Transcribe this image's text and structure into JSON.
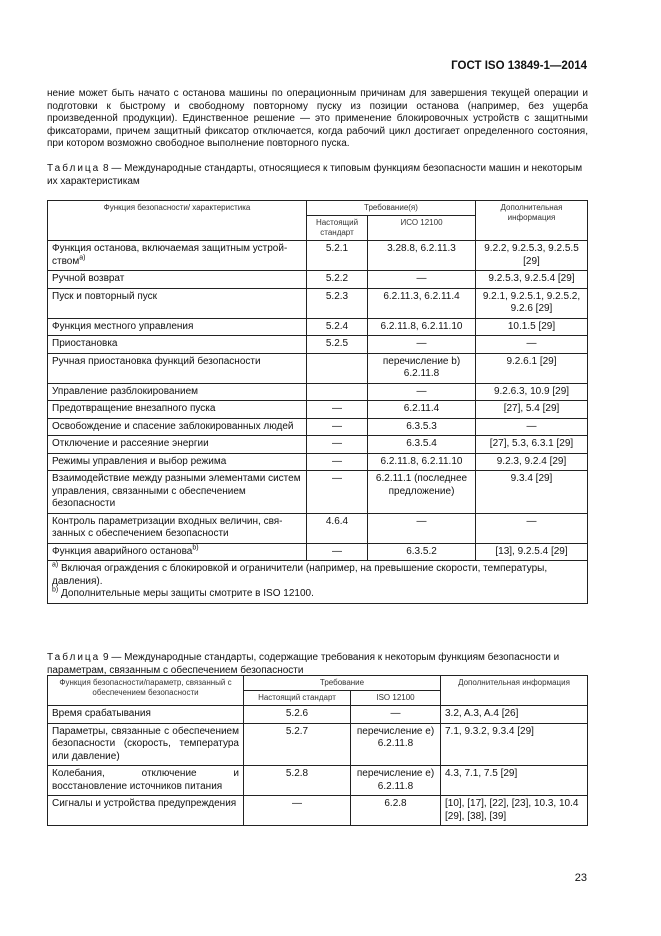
{
  "header": "ГОСТ ISO 13849-1—2014",
  "paragraph": "нение может быть начато с останова машины по операционным причинам для завершения текущей операции и подготовки к быстрому и свободному повторному пуску из позиции останова (например, без ущерба произведенной продукции). Единственное решение — это применение блокировочных устройств с защитными фиксаторами, причем защитный фиксатор отключается, когда рабочий цикл достигает определенного состояния, при котором возможно свободное выполнение повторного пуска.",
  "table8": {
    "label": "Таблица",
    "caption": " 8 — Международные стандарты, относящиеся к типовым функциям безопасности машин и некоторым их характеристикам",
    "headers": {
      "function": "Функция безопасности/ характеристика",
      "requirement": "Требование(я)",
      "this_std": "Настоящий стандарт",
      "iso": "ИСО 12100",
      "info": "Дополнительная информация"
    },
    "rows": [
      [
        "Функция останова, включаемая защитным устрой-ством",
        "5.2.1",
        "3.28.8, 6.2.11.3",
        "9.2.2, 9.2.5.3, 9.2.5.5 [29]",
        "a)"
      ],
      [
        "Ручной возврат",
        "5.2.2",
        "—",
        "9.2.5.3, 9.2.5.4 [29]",
        ""
      ],
      [
        "Пуск и повторный пуск",
        "5.2.3",
        "6.2.11.3, 6.2.11.4",
        "9.2.1, 9.2.5.1, 9.2.5.2, 9.2.6 [29]",
        ""
      ],
      [
        "Функция местного управления",
        "5.2.4",
        "6.2.11.8, 6.2.11.10",
        "10.1.5 [29]",
        ""
      ],
      [
        "Приостановка",
        "5.2.5",
        "—",
        "—",
        ""
      ],
      [
        "Ручная приостановка функций безопасности",
        "",
        "перечисление b) 6.2.11.8",
        "9.2.6.1 [29]",
        ""
      ],
      [
        "Управление разблокированием",
        "",
        "—",
        "9.2.6.3, 10.9 [29]",
        ""
      ],
      [
        "Предотвращение внезапного пуска",
        "—",
        "6.2.11.4",
        "[27], 5.4 [29]",
        ""
      ],
      [
        "Освобождение и спасение заблокированных людей",
        "—",
        "6.3.5.3",
        "—",
        ""
      ],
      [
        "Отключение и рассеяние энергии",
        "—",
        "6.3.5.4",
        "[27], 5.3, 6.3.1 [29]",
        ""
      ],
      [
        "Режимы управления и выбор режима",
        "—",
        "6.2.11.8, 6.2.11.10",
        "9.2.3, 9.2.4 [29]",
        ""
      ],
      [
        "Взаимодействие между разными элементами систем управления, связанными с обеспечением безопасности",
        "—",
        "6.2.11.1 (последнее предложение)",
        "9.3.4 [29]",
        ""
      ],
      [
        "Контроль параметризации входных величин, свя-занных с обеспечением безопасности",
        "4.6.4",
        "—",
        "—",
        ""
      ],
      [
        "Функция аварийного останова",
        "—",
        "6.3.5.2",
        "[13], 9.2.5.4 [29]",
        "b)"
      ]
    ],
    "footnotes": [
      {
        "mark": "a)",
        "text": " Включая ограждения с блокировкой и ограничители (например, на превышение скорости, температуры, давления)."
      },
      {
        "mark": "b)",
        "text": " Дополнительные меры защиты смотрите в ISO 12100."
      }
    ]
  },
  "table9": {
    "label": "Таблица",
    "caption": " 9 — Международные стандарты, содержащие требования к некоторым функциям безопасности и параметрам, связанным с обеспечением безопасности",
    "headers": {
      "function": "Функция безопасности/параметр, связанный с обеспечением безопасности",
      "requirement": "Требование",
      "this_std": "Настоящий стандарт",
      "iso": "ISO 12100",
      "info": "Дополнительная информация"
    },
    "rows": [
      [
        "Время срабатывания",
        "5.2.6",
        "—",
        "3.2, A.3, A.4 [26]"
      ],
      [
        "Параметры, связанные с обеспечением безопасности (скорость, температура или давление)",
        "5.2.7",
        "перечисление e) 6.2.11.8",
        "7.1, 9.3.2, 9.3.4 [29]"
      ],
      [
        "Колебания, отключение и восстановление источников питания",
        "5.2.8",
        "перечисление e) 6.2.11.8",
        "4.3, 7.1, 7.5 [29]"
      ],
      [
        "Сигналы и устройства предупреждения",
        "—",
        "6.2.8",
        "[10], [17], [22], [23], 10.3, 10.4 [29], [38], [39]"
      ]
    ]
  },
  "page_number": "23"
}
